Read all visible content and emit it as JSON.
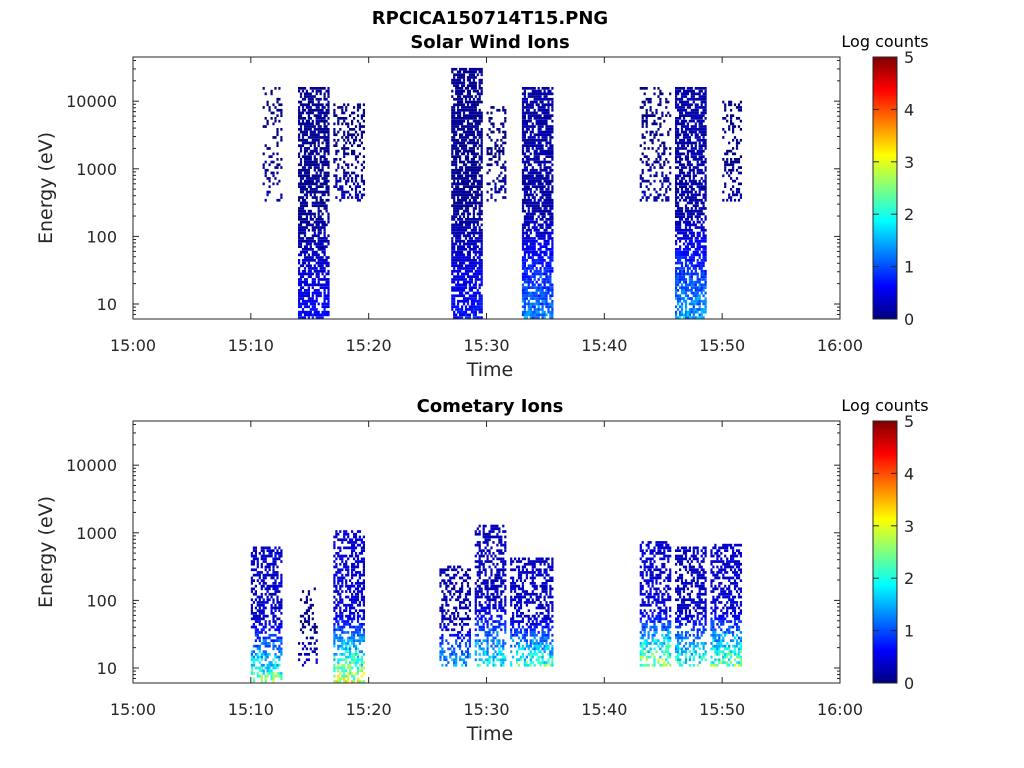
{
  "figure": {
    "title": "RPCICA150714T15.PNG"
  },
  "colormap": {
    "stops": [
      "#00007f",
      "#0000ff",
      "#007fff",
      "#00ffff",
      "#7fff7f",
      "#ffff00",
      "#ff7f00",
      "#ff0000",
      "#7f0000"
    ]
  },
  "chart_data": [
    {
      "type": "heatmap",
      "title": "Solar Wind Ions",
      "xlabel": "Time",
      "ylabel": "Energy (eV)",
      "x_range": [
        "15:00",
        "16:00"
      ],
      "x_ticks": [
        "15:00",
        "15:10",
        "15:20",
        "15:30",
        "15:40",
        "15:50",
        "16:00"
      ],
      "y_scale": "log",
      "y_range": [
        6,
        45000
      ],
      "y_ticks": [
        10,
        100,
        1000,
        10000
      ],
      "y_tick_labels": [
        "10",
        "100",
        "1000",
        "10000"
      ],
      "colorbar": {
        "label": "Log counts",
        "range": [
          0,
          5
        ],
        "ticks": [
          "0",
          "1",
          "2",
          "3",
          "4",
          "5"
        ]
      },
      "bursts": [
        {
          "start": "15:11",
          "end": "15:12",
          "e_min": 300,
          "e_max": 15000,
          "peak_log_counts": 0.3,
          "density": 0.25
        },
        {
          "start": "15:14",
          "end": "15:16",
          "e_min": 6,
          "e_max": 15000,
          "peak_log_counts": 0.8,
          "density": 0.7
        },
        {
          "start": "15:17",
          "end": "15:19",
          "e_min": 300,
          "e_max": 9000,
          "peak_log_counts": 0.4,
          "density": 0.35
        },
        {
          "start": "15:27",
          "end": "15:29",
          "e_min": 6,
          "e_max": 30000,
          "peak_log_counts": 0.9,
          "density": 0.75
        },
        {
          "start": "15:30",
          "end": "15:31",
          "e_min": 300,
          "e_max": 8000,
          "peak_log_counts": 0.3,
          "density": 0.3
        },
        {
          "start": "15:33",
          "end": "15:35",
          "e_min": 6,
          "e_max": 15000,
          "peak_log_counts": 1.6,
          "density": 0.75
        },
        {
          "start": "15:43",
          "end": "15:45",
          "e_min": 300,
          "e_max": 15000,
          "peak_log_counts": 0.3,
          "density": 0.3
        },
        {
          "start": "15:46",
          "end": "15:48",
          "e_min": 6,
          "e_max": 15000,
          "peak_log_counts": 1.8,
          "density": 0.7
        },
        {
          "start": "15:50",
          "end": "15:51",
          "e_min": 300,
          "e_max": 10000,
          "peak_log_counts": 0.3,
          "density": 0.35
        }
      ]
    },
    {
      "type": "heatmap",
      "title": "Cometary Ions",
      "xlabel": "Time",
      "ylabel": "Energy (eV)",
      "x_range": [
        "15:00",
        "16:00"
      ],
      "x_ticks": [
        "15:00",
        "15:10",
        "15:20",
        "15:30",
        "15:40",
        "15:50",
        "16:00"
      ],
      "y_scale": "log",
      "y_range": [
        6,
        45000
      ],
      "y_ticks": [
        10,
        100,
        1000,
        10000
      ],
      "y_tick_labels": [
        "10",
        "100",
        "1000",
        "10000"
      ],
      "colorbar": {
        "label": "Log counts",
        "range": [
          0,
          5
        ],
        "ticks": [
          "0",
          "1",
          "2",
          "3",
          "4",
          "5"
        ]
      },
      "bursts": [
        {
          "start": "15:10",
          "end": "15:12",
          "e_min": 6,
          "e_max": 600,
          "peak_log_counts": 3.0,
          "density": 0.55
        },
        {
          "start": "15:14",
          "end": "15:15",
          "e_min": 10,
          "e_max": 150,
          "peak_log_counts": 0.5,
          "density": 0.25
        },
        {
          "start": "15:17",
          "end": "15:19",
          "e_min": 6,
          "e_max": 1000,
          "peak_log_counts": 3.6,
          "density": 0.55
        },
        {
          "start": "15:26",
          "end": "15:28",
          "e_min": 10,
          "e_max": 300,
          "peak_log_counts": 2.0,
          "density": 0.4
        },
        {
          "start": "15:29",
          "end": "15:31",
          "e_min": 10,
          "e_max": 1200,
          "peak_log_counts": 2.5,
          "density": 0.5
        },
        {
          "start": "15:32",
          "end": "15:35",
          "e_min": 10,
          "e_max": 400,
          "peak_log_counts": 2.8,
          "density": 0.55
        },
        {
          "start": "15:43",
          "end": "15:45",
          "e_min": 10,
          "e_max": 700,
          "peak_log_counts": 3.4,
          "density": 0.55
        },
        {
          "start": "15:46",
          "end": "15:48",
          "e_min": 10,
          "e_max": 600,
          "peak_log_counts": 2.8,
          "density": 0.5
        },
        {
          "start": "15:49",
          "end": "15:51",
          "e_min": 10,
          "e_max": 650,
          "peak_log_counts": 3.2,
          "density": 0.55
        }
      ]
    }
  ]
}
